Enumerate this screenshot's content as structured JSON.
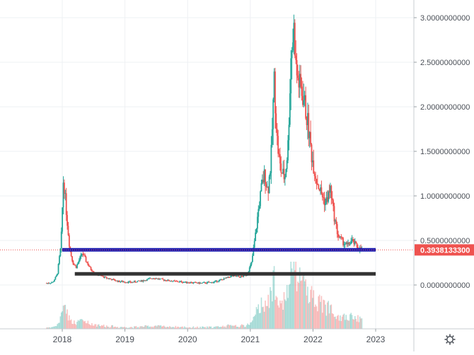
{
  "chart_data": {
    "type": "candlestick",
    "x_axis": {
      "tick_labels": [
        "2018",
        "2019",
        "2020",
        "2021",
        "2022",
        "2023"
      ],
      "range": [
        2017.45,
        2023.75
      ]
    },
    "y_axis": {
      "side": "right",
      "tick_labels": [
        "3.0000000000",
        "2.5000000000",
        "2.0000000000",
        "1.5000000000",
        "1.0000000000",
        "0.5000000000",
        "0.0000000000"
      ],
      "tick_values": [
        3.0,
        2.5,
        2.0,
        1.5,
        1.0,
        0.5,
        0.0
      ],
      "range": [
        -0.5,
        3.12
      ]
    },
    "grid": true,
    "last_price": {
      "label": "0.3938133300",
      "value": 0.3938
    },
    "horizontal_lines": [
      {
        "color": "#1f1fb0",
        "value": 0.395,
        "x_start": 2018.0,
        "x_end": 2023.0
      },
      {
        "color": "#333333",
        "value": 0.125,
        "x_start": 2018.2,
        "x_end": 2023.0
      }
    ],
    "price_path": [
      [
        2017.75,
        0.02
      ],
      [
        2017.85,
        0.03
      ],
      [
        2017.92,
        0.12
      ],
      [
        2017.98,
        0.45
      ],
      [
        2018.02,
        1.22
      ],
      [
        2018.05,
        0.95
      ],
      [
        2018.08,
        0.7
      ],
      [
        2018.12,
        0.4
      ],
      [
        2018.17,
        0.25
      ],
      [
        2018.22,
        0.2
      ],
      [
        2018.27,
        0.28
      ],
      [
        2018.32,
        0.36
      ],
      [
        2018.38,
        0.27
      ],
      [
        2018.45,
        0.18
      ],
      [
        2018.55,
        0.12
      ],
      [
        2018.7,
        0.08
      ],
      [
        2018.9,
        0.04
      ],
      [
        2019.1,
        0.03
      ],
      [
        2019.3,
        0.05
      ],
      [
        2019.45,
        0.08
      ],
      [
        2019.6,
        0.06
      ],
      [
        2019.8,
        0.04
      ],
      [
        2020.0,
        0.03
      ],
      [
        2020.2,
        0.02
      ],
      [
        2020.4,
        0.03
      ],
      [
        2020.55,
        0.06
      ],
      [
        2020.7,
        0.1
      ],
      [
        2020.85,
        0.09
      ],
      [
        2020.95,
        0.12
      ],
      [
        2021.02,
        0.25
      ],
      [
        2021.08,
        0.55
      ],
      [
        2021.13,
        0.85
      ],
      [
        2021.18,
        1.1
      ],
      [
        2021.23,
        1.25
      ],
      [
        2021.28,
        1.05
      ],
      [
        2021.33,
        1.4
      ],
      [
        2021.38,
        2.3
      ],
      [
        2021.43,
        1.6
      ],
      [
        2021.48,
        1.3
      ],
      [
        2021.55,
        1.2
      ],
      [
        2021.6,
        1.55
      ],
      [
        2021.65,
        2.6
      ],
      [
        2021.7,
        2.9
      ],
      [
        2021.73,
        2.4
      ],
      [
        2021.78,
        2.25
      ],
      [
        2021.85,
        2.1
      ],
      [
        2021.92,
        1.8
      ],
      [
        2021.98,
        1.45
      ],
      [
        2022.05,
        1.2
      ],
      [
        2022.12,
        1.05
      ],
      [
        2022.2,
        0.92
      ],
      [
        2022.28,
        1.08
      ],
      [
        2022.33,
        0.8
      ],
      [
        2022.4,
        0.55
      ],
      [
        2022.48,
        0.48
      ],
      [
        2022.55,
        0.44
      ],
      [
        2022.62,
        0.5
      ],
      [
        2022.68,
        0.45
      ],
      [
        2022.73,
        0.41
      ],
      [
        2022.78,
        0.394
      ]
    ]
  }
}
